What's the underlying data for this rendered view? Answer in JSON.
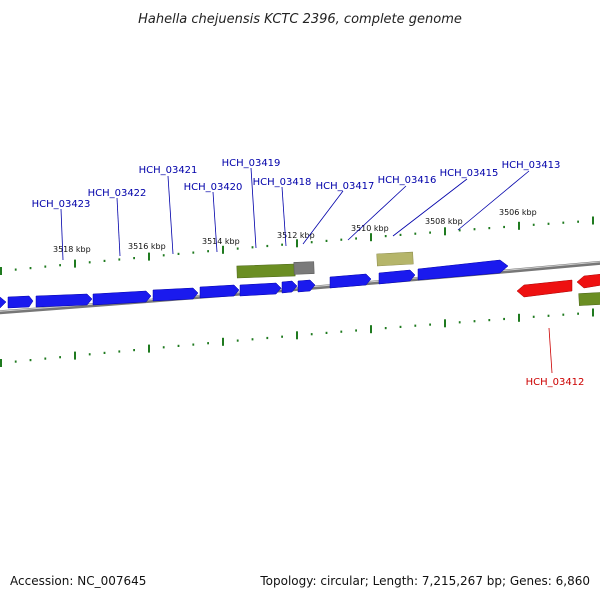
{
  "title": "Hahella chejuensis KCTC 2396, complete genome",
  "footer": {
    "accession": "Accession: NC_007645",
    "summary": "Topology: circular; Length: 7,215,267 bp; Genes: 6,860"
  },
  "colors": {
    "forward": "#1a1aee",
    "reverse": "#ee1111",
    "feature_green": "#6b8e23",
    "feature_khaki": "#b5b56a",
    "feature_gray": "#777777",
    "backbone": "#888888",
    "ticks": "#1f7a1f"
  },
  "scale_labels": [
    "3518 kbp",
    "3516 kbp",
    "3514 kbp",
    "3512 kbp",
    "3510 kbp",
    "3508 kbp",
    "3506 kbp"
  ],
  "gene_labels": [
    {
      "text": "HCH_03423",
      "strand": "forward"
    },
    {
      "text": "HCH_03422",
      "strand": "forward"
    },
    {
      "text": "HCH_03421",
      "strand": "forward"
    },
    {
      "text": "HCH_03420",
      "strand": "forward"
    },
    {
      "text": "HCH_03419",
      "strand": "forward"
    },
    {
      "text": "HCH_03418",
      "strand": "forward"
    },
    {
      "text": "HCH_03417",
      "strand": "forward"
    },
    {
      "text": "HCH_03416",
      "strand": "forward"
    },
    {
      "text": "HCH_03415",
      "strand": "forward"
    },
    {
      "text": "HCH_03413",
      "strand": "forward"
    },
    {
      "text": "HCH_03412",
      "strand": "reverse"
    }
  ]
}
